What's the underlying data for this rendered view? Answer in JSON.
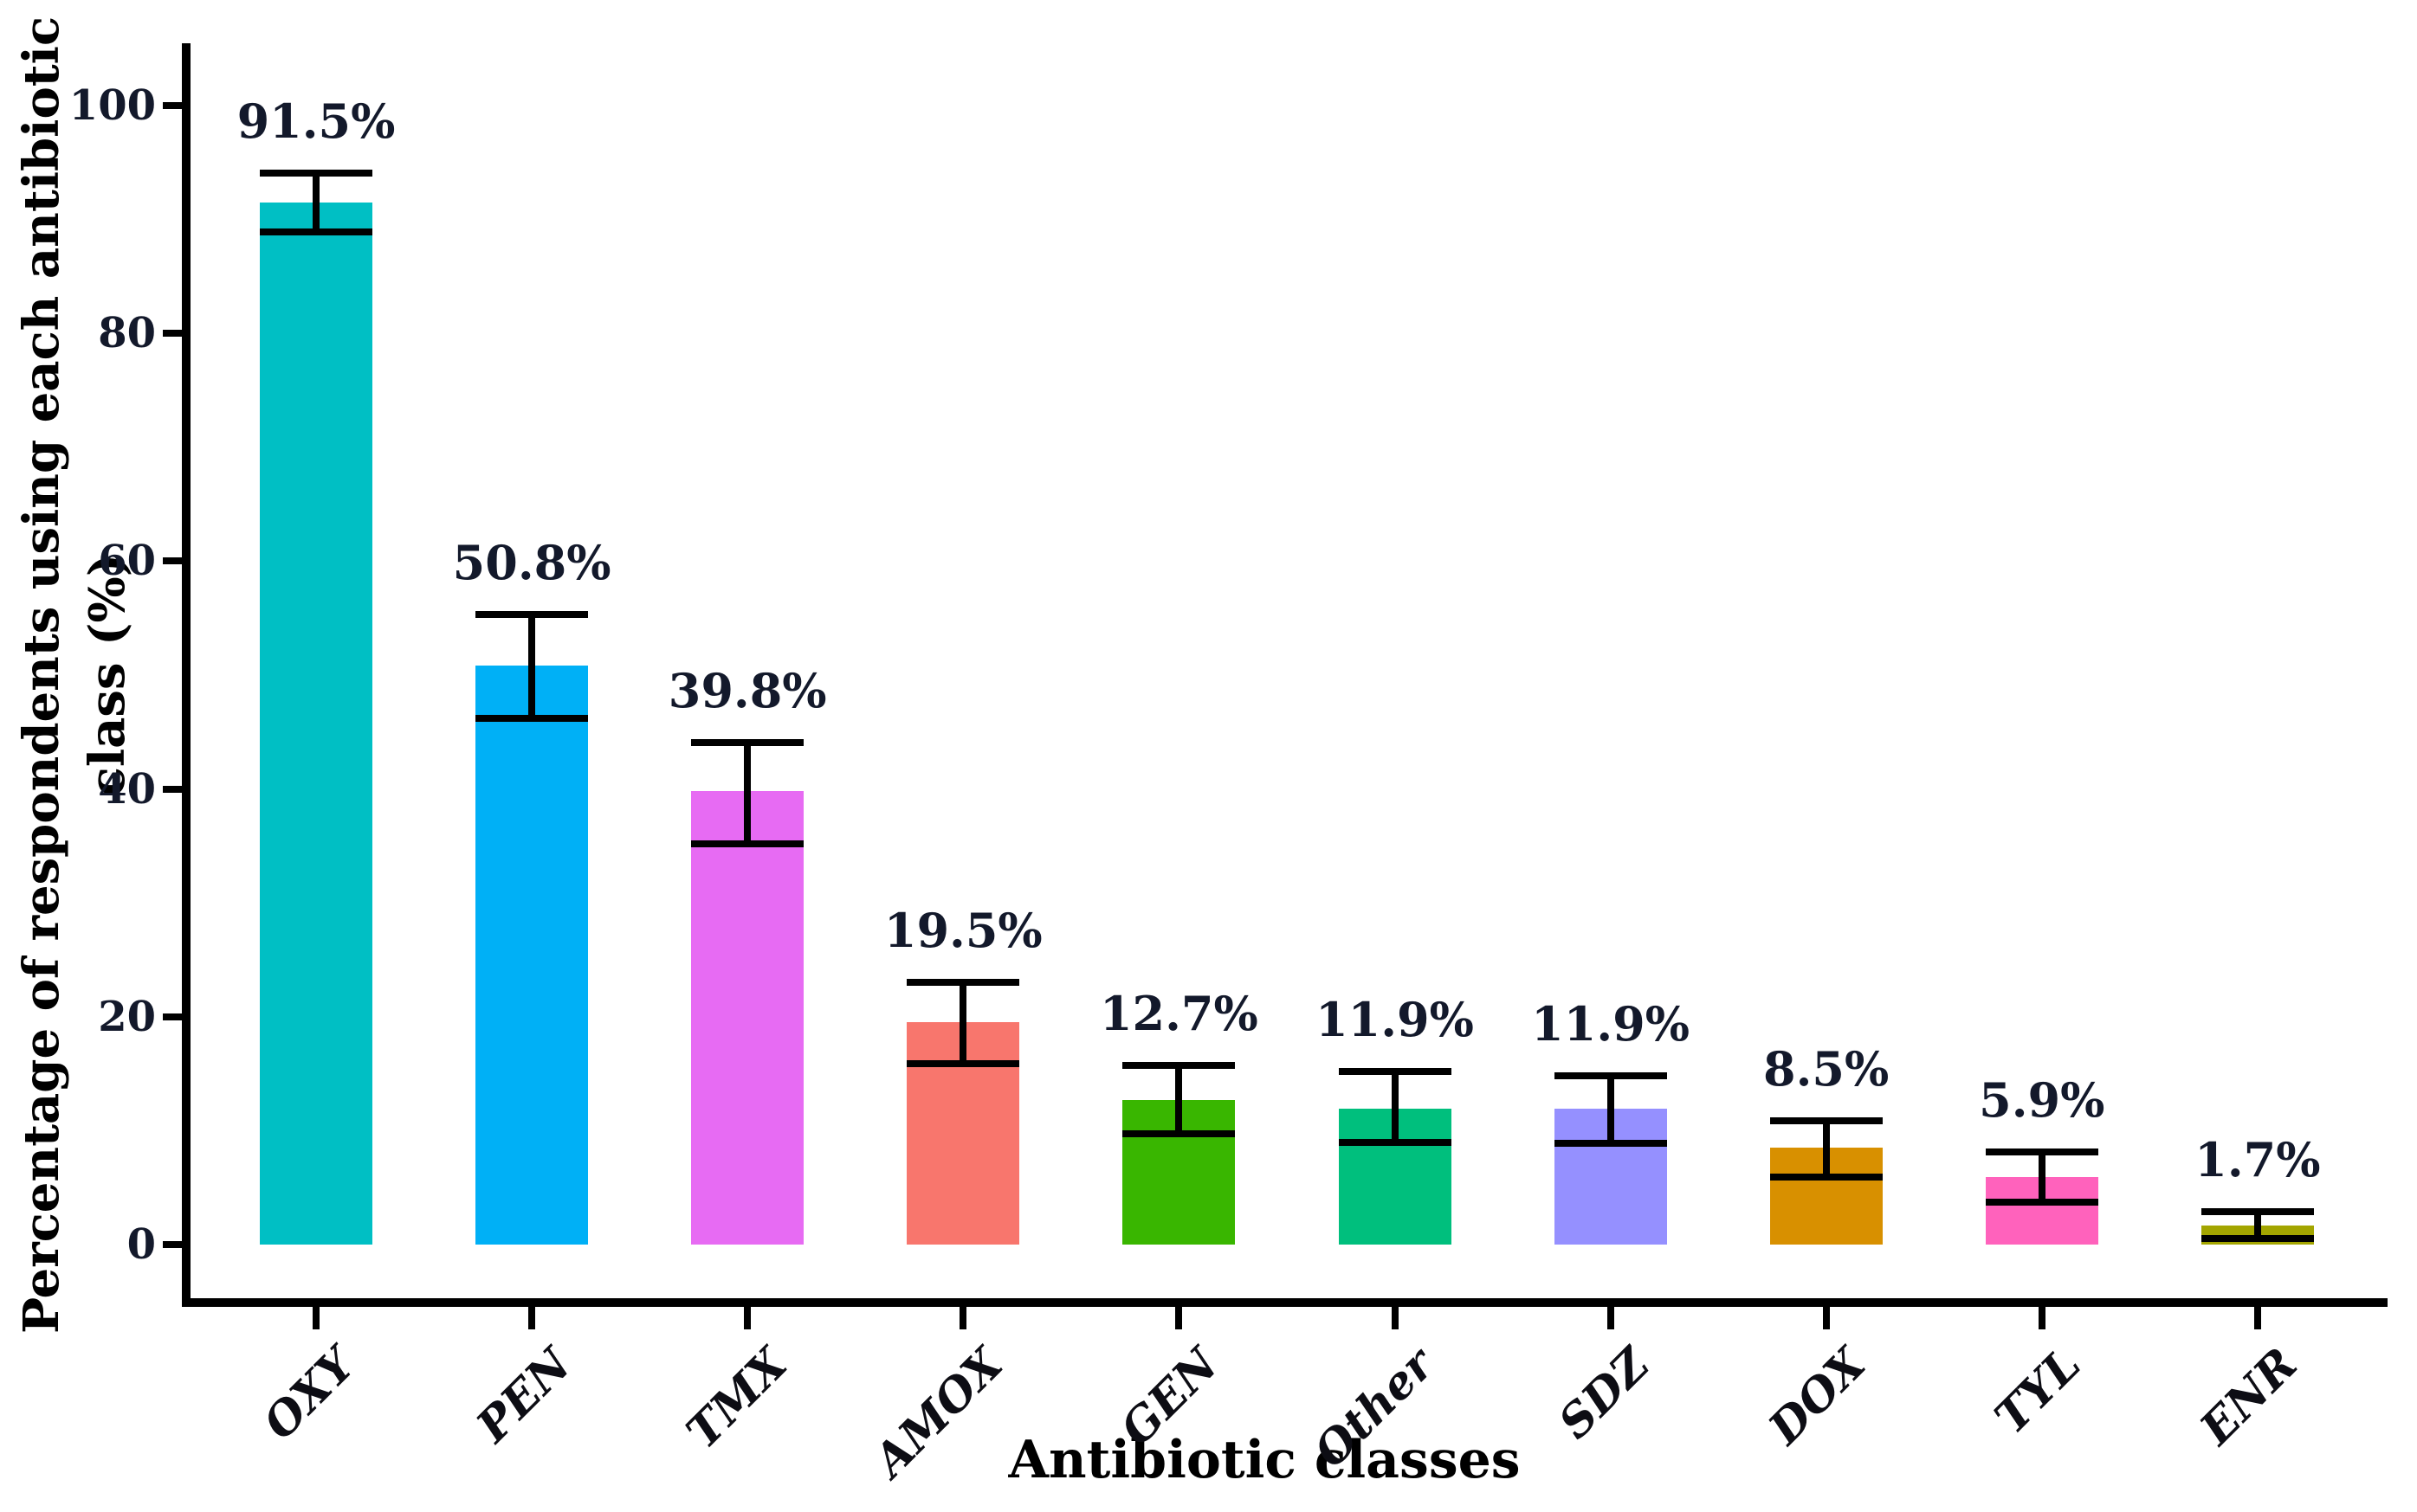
{
  "figure": {
    "background": "#ffffff",
    "text_color": "#13192b",
    "axis_color": "#000000"
  },
  "chart_data": {
    "type": "bar",
    "title": "",
    "xlabel": "Antibiotic classes",
    "ylabel": "Percentage of respondents using each antibiotic class (%)",
    "ylim": [
      0,
      100
    ],
    "yticks": [
      0,
      20,
      40,
      60,
      80,
      100
    ],
    "grid": false,
    "legend_position": "none",
    "error_bars": true,
    "categories": [
      "OXY",
      "PEN",
      "TMX",
      "AMOX",
      "GEN",
      "Other",
      "SDZ",
      "DOX",
      "TYL",
      "ENR"
    ],
    "values": [
      91.5,
      50.8,
      39.8,
      19.5,
      12.7,
      11.9,
      11.9,
      8.5,
      5.9,
      1.7
    ],
    "value_labels": [
      "91.5%",
      "50.8%",
      "39.8%",
      "19.5%",
      "12.7%",
      "11.9%",
      "11.9%",
      "8.5%",
      "5.9%",
      "1.7%"
    ],
    "error_low": [
      88.9,
      46.2,
      35.2,
      15.9,
      9.7,
      9.0,
      8.9,
      5.9,
      3.7,
      0.5
    ],
    "error_high": [
      94.1,
      55.3,
      44.1,
      23.0,
      15.7,
      15.2,
      14.8,
      10.9,
      8.1,
      2.9
    ],
    "bar_colors": [
      "#00BFC4",
      "#00B0F6",
      "#E76BF3",
      "#F8766D",
      "#39B600",
      "#00BF7D",
      "#9590FF",
      "#D89000",
      "#FF62BC",
      "#A3A500"
    ]
  }
}
